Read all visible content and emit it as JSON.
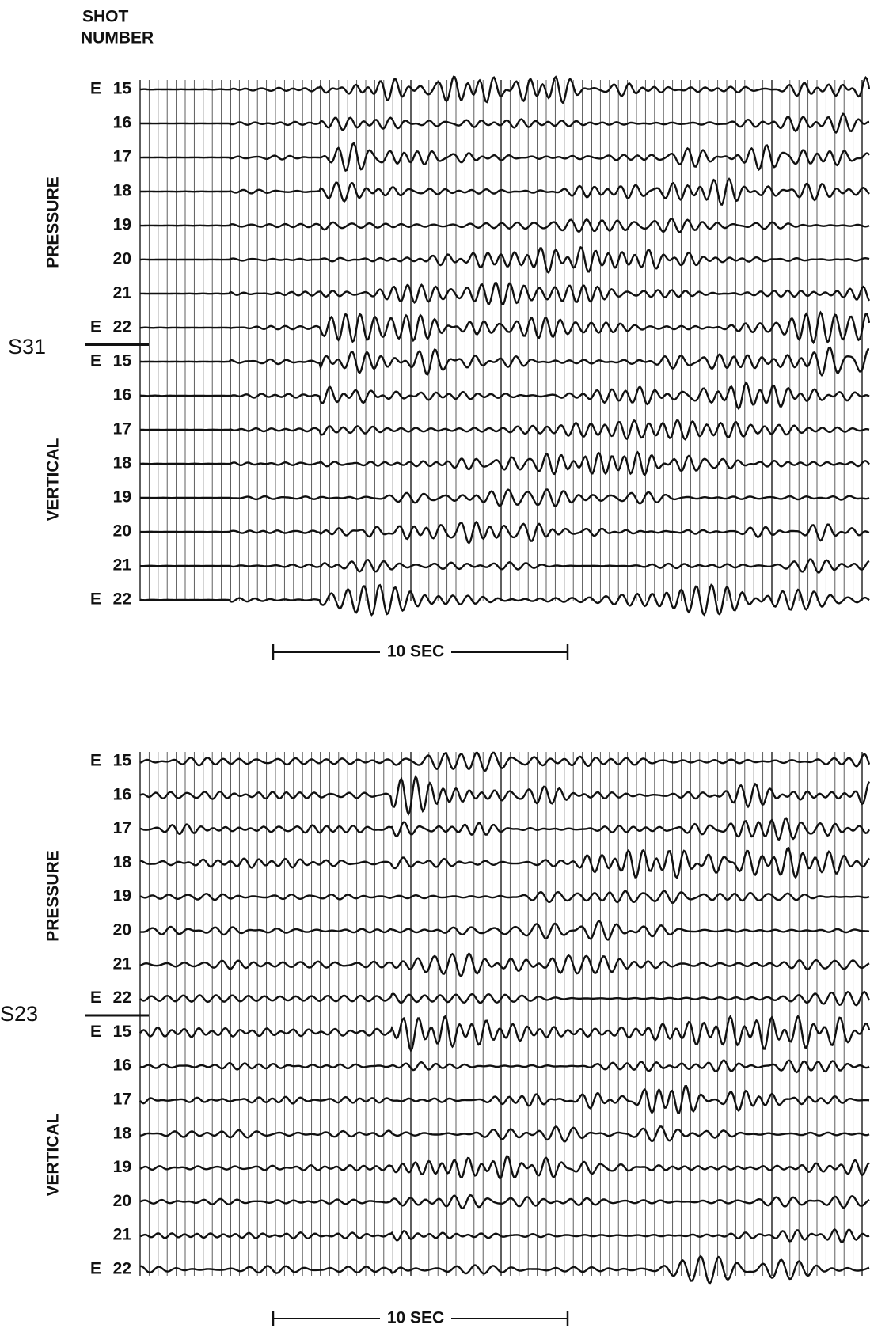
{
  "header": {
    "line1": "SHOT",
    "line2": "NUMBER"
  },
  "panels": [
    {
      "station": "S31",
      "scale": "10 SEC",
      "groups": [
        {
          "label": "PRESSURE",
          "traces": [
            {
              "prefix": "E",
              "number": "15"
            },
            {
              "number": "16"
            },
            {
              "number": "17"
            },
            {
              "number": "18"
            },
            {
              "number": "19"
            },
            {
              "number": "20"
            },
            {
              "number": "21"
            },
            {
              "prefix": "E",
              "number": "22"
            }
          ]
        },
        {
          "label": "VERTICAL",
          "traces": [
            {
              "prefix": "E",
              "number": "15"
            },
            {
              "number": "16"
            },
            {
              "number": "17"
            },
            {
              "number": "18"
            },
            {
              "number": "19"
            },
            {
              "number": "20"
            },
            {
              "number": "21"
            },
            {
              "prefix": "E",
              "number": "22"
            }
          ]
        }
      ]
    },
    {
      "station": "S23",
      "scale": "10 SEC",
      "groups": [
        {
          "label": "PRESSURE",
          "traces": [
            {
              "prefix": "E",
              "number": "15"
            },
            {
              "number": "16"
            },
            {
              "number": "17"
            },
            {
              "number": "18"
            },
            {
              "number": "19"
            },
            {
              "number": "20"
            },
            {
              "number": "21"
            },
            {
              "prefix": "E",
              "number": "22"
            }
          ]
        },
        {
          "label": "VERTICAL",
          "traces": [
            {
              "prefix": "E",
              "number": "15"
            },
            {
              "number": "16"
            },
            {
              "number": "17"
            },
            {
              "number": "18"
            },
            {
              "number": "19"
            },
            {
              "number": "20"
            },
            {
              "number": "21"
            },
            {
              "prefix": "E",
              "number": "22"
            }
          ]
        }
      ]
    }
  ]
}
